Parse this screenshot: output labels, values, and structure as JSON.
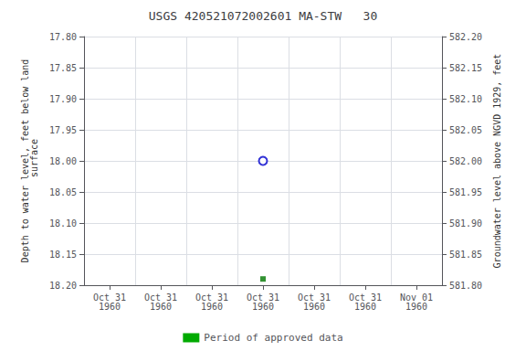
{
  "chart_data": {
    "type": "scatter",
    "title": "USGS 420521072002601 MA-STW   30",
    "ylabel": "Depth to water level, feet below land\n surface",
    "y2label": "Groundwater level above NGVD 1929, feet",
    "categories": [
      "Oct 31\n1960",
      "Oct 31\n1960",
      "Oct 31\n1960",
      "Oct 31\n1960",
      "Oct 31\n1960",
      "Oct 31\n1960",
      "Nov 01\n1960"
    ],
    "series": [
      {
        "color": "#0000cc",
        "marker": "hollow_circle",
        "line_style": "none",
        "values": [
          null,
          null,
          null,
          18.0,
          null,
          null,
          null
        ]
      },
      {
        "color": "#007700",
        "marker": "square",
        "line_style": "none",
        "values": [
          null,
          null,
          null,
          18.19,
          null,
          null,
          null
        ]
      }
    ],
    "ylim": [
      18.2,
      17.8
    ],
    "yticks": [
      {
        "value": 17.8,
        "label": "17.80"
      },
      {
        "value": 17.85,
        "label": "17.85"
      },
      {
        "value": 17.9,
        "label": "17.90"
      },
      {
        "value": 17.95,
        "label": "17.95"
      },
      {
        "value": 18.0,
        "label": "18.00"
      },
      {
        "value": 18.05,
        "label": "18.05"
      },
      {
        "value": 18.1,
        "label": "18.10"
      },
      {
        "value": 18.15,
        "label": "18.15"
      },
      {
        "value": 18.2,
        "label": "18.20"
      }
    ],
    "y2lim": [
      581.8,
      582.2
    ],
    "y2ticks": [
      {
        "value": 581.8,
        "label": "581.80"
      },
      {
        "value": 581.85,
        "label": "581.85"
      },
      {
        "value": 581.9,
        "label": "581.90"
      },
      {
        "value": 581.95,
        "label": "581.95"
      },
      {
        "value": 582.0,
        "label": "582.00"
      },
      {
        "value": 582.05,
        "label": "582.05"
      },
      {
        "value": 582.1,
        "label": "582.10"
      },
      {
        "value": 582.15,
        "label": "582.15"
      },
      {
        "value": 582.2,
        "label": "582.20"
      }
    ],
    "grid": true,
    "legend": "bottom",
    "legend_label": "Period of approved data",
    "legend_color": "#00aa00"
  }
}
